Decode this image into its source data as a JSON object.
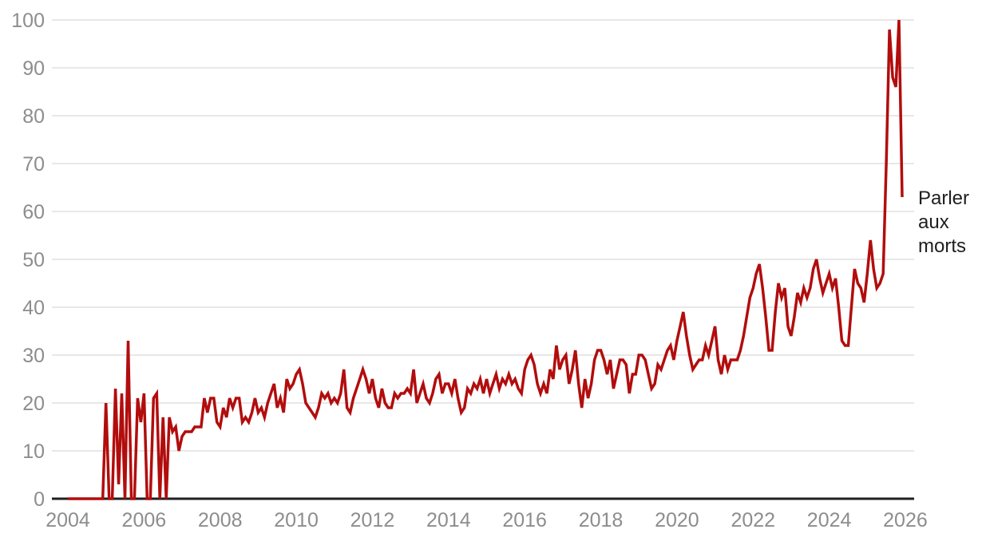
{
  "chart_data": {
    "type": "line",
    "title": "",
    "x_unit": "month",
    "x_start": "2004-01",
    "x_end": "2025-12",
    "x_tick_labels": [
      "2004",
      "2006",
      "2008",
      "2010",
      "2012",
      "2014",
      "2016",
      "2018",
      "2020",
      "2022",
      "2024",
      "2026"
    ],
    "y_tick_labels": [
      "0",
      "10",
      "20",
      "30",
      "40",
      "50",
      "60",
      "70",
      "80",
      "90",
      "100"
    ],
    "ylim": [
      0,
      100
    ],
    "grid": true,
    "legend_position": "right-of-line-end",
    "series": [
      {
        "name": "Parler aux morts",
        "color": "#b20d0d",
        "values": [
          0,
          0,
          0,
          0,
          0,
          0,
          0,
          0,
          0,
          0,
          0,
          0,
          20,
          0,
          0,
          23,
          3,
          22,
          0,
          33,
          0,
          0,
          21,
          16,
          22,
          0,
          0,
          21,
          22,
          0,
          17,
          0,
          17,
          14,
          15,
          10,
          13,
          14,
          14,
          14,
          15,
          15,
          15,
          21,
          18,
          21,
          21,
          16,
          15,
          19,
          17,
          21,
          19,
          21,
          21,
          16,
          17,
          16,
          18,
          21,
          18,
          19,
          17,
          20,
          22,
          24,
          19,
          21,
          18,
          25,
          23,
          24,
          26,
          27,
          24,
          20,
          19,
          18,
          17,
          19,
          22,
          21,
          22,
          20,
          21,
          20,
          22,
          27,
          19,
          18,
          21,
          23,
          25,
          27,
          25,
          22,
          25,
          21,
          19,
          23,
          20,
          19,
          19,
          22,
          21,
          22,
          22,
          23,
          22,
          27,
          20,
          22,
          24,
          21,
          20,
          22,
          25,
          26,
          22,
          24,
          24,
          22,
          25,
          21,
          18,
          19,
          23,
          22,
          24,
          23,
          25,
          22,
          25,
          22,
          24,
          26,
          23,
          25,
          24,
          26,
          24,
          25,
          23,
          22,
          27,
          29,
          30,
          28,
          24,
          22,
          24,
          22,
          27,
          25,
          32,
          27,
          29,
          30,
          24,
          27,
          31,
          24,
          19,
          25,
          21,
          24,
          29,
          31,
          31,
          29,
          26,
          29,
          23,
          26,
          29,
          29,
          28,
          22,
          26,
          26,
          30,
          30,
          29,
          26,
          23,
          24,
          28,
          27,
          29,
          31,
          32,
          29,
          33,
          36,
          39,
          34,
          30,
          27,
          28,
          29,
          29,
          32,
          30,
          33,
          36,
          29,
          26,
          30,
          27,
          29,
          29,
          29,
          31,
          34,
          38,
          42,
          44,
          47,
          49,
          44,
          38,
          31,
          31,
          39,
          45,
          42,
          44,
          36,
          34,
          38,
          43,
          41,
          44,
          42,
          44,
          48,
          50,
          46,
          43,
          45,
          47,
          44,
          46,
          40,
          33,
          32,
          32,
          40,
          48,
          45,
          44,
          41,
          47,
          54,
          48,
          44,
          45,
          47,
          70,
          98,
          88,
          86,
          100,
          63
        ]
      }
    ]
  },
  "annotation": {
    "series_label": "Parler aux morts"
  },
  "colors": {
    "line": "#b20d0d",
    "axis": "#1f1f1f",
    "grid": "#e8e8e8",
    "tick_text": "#8d8d8d",
    "label_text": "#1e1e1e",
    "background": "#ffffff"
  }
}
